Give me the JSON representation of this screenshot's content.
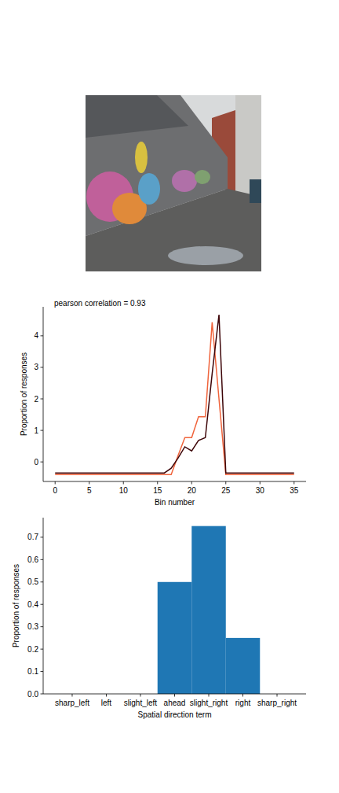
{
  "chart_data": [
    {
      "type": "line",
      "title": "pearson correlation = 0.93",
      "x_label": "Bin number",
      "y_label": "Proportion of responses",
      "x": [
        0,
        1,
        2,
        3,
        4,
        5,
        6,
        7,
        8,
        9,
        10,
        11,
        12,
        13,
        14,
        15,
        16,
        17,
        18,
        19,
        20,
        21,
        22,
        23,
        24,
        25,
        26,
        27,
        28,
        29,
        30,
        31,
        32,
        33,
        34,
        35
      ],
      "series": [
        {
          "color": "#f0643c",
          "values": [
            -0.4,
            -0.4,
            -0.4,
            -0.4,
            -0.4,
            -0.4,
            -0.4,
            -0.4,
            -0.4,
            -0.4,
            -0.4,
            -0.4,
            -0.4,
            -0.4,
            -0.4,
            -0.4,
            -0.4,
            -0.4,
            0.2,
            0.77,
            0.77,
            1.43,
            1.43,
            4.43,
            2.0,
            -0.4,
            -0.4,
            -0.4,
            -0.4,
            -0.4,
            -0.4,
            -0.4,
            -0.4,
            -0.4,
            -0.4,
            -0.4
          ]
        },
        {
          "color": "#3d0508",
          "values": [
            -0.35,
            -0.35,
            -0.35,
            -0.35,
            -0.35,
            -0.35,
            -0.35,
            -0.35,
            -0.35,
            -0.35,
            -0.35,
            -0.35,
            -0.35,
            -0.35,
            -0.35,
            -0.35,
            -0.35,
            -0.2,
            0.12,
            0.48,
            0.35,
            0.68,
            0.77,
            2.8,
            4.67,
            -0.35,
            -0.35,
            -0.35,
            -0.35,
            -0.35,
            -0.35,
            -0.35,
            -0.35,
            -0.35,
            -0.35,
            -0.35
          ]
        }
      ],
      "xlim": [
        -1.75,
        36.75
      ],
      "xticks": [
        0,
        5,
        10,
        15,
        20,
        25,
        30,
        35
      ],
      "ylim": [
        -0.62,
        4.92
      ],
      "yticks": [
        0,
        1,
        2,
        3,
        4
      ],
      "grid": false
    },
    {
      "type": "bar",
      "x_label": "Spatial direction term",
      "y_label": "Proportion of responses",
      "categories": [
        "sharp_left",
        "left",
        "slight_left",
        "ahead",
        "slight_right",
        "right",
        "sharp_right"
      ],
      "values": [
        0,
        0,
        0,
        0.5,
        0.75,
        0.25,
        0
      ],
      "color": "#1f77b4",
      "ylim": [
        0,
        0.7875
      ],
      "yticks": [
        {
          "value": 0,
          "label": "0.0"
        },
        {
          "value": 0.1,
          "label": "0.1"
        },
        {
          "value": 0.2,
          "label": "0.2"
        },
        {
          "value": 0.3,
          "label": "0.3"
        },
        {
          "value": 0.4,
          "label": "0.4"
        },
        {
          "value": 0.5,
          "label": "0.5"
        },
        {
          "value": 0.6,
          "label": "0.6"
        },
        {
          "value": 0.7,
          "label": "0.7"
        }
      ],
      "grid": false
    }
  ]
}
